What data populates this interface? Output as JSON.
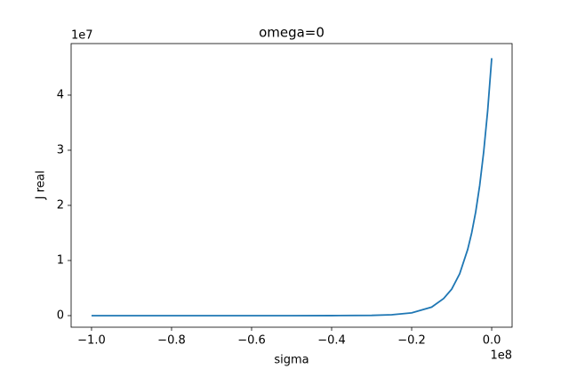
{
  "chart_data": {
    "type": "line",
    "title": "omega=0",
    "x_label": "sigma",
    "y_label": "J real",
    "x_offset": "1e8",
    "y_offset": "1e7",
    "x": [
      -1.0,
      -0.9,
      -0.8,
      -0.7,
      -0.6,
      -0.5,
      -0.4,
      -0.3,
      -0.25,
      -0.2,
      -0.15,
      -0.12,
      -0.1,
      -0.08,
      -0.06,
      -0.05,
      -0.04,
      -0.03,
      -0.02,
      -0.01,
      0.0
    ],
    "series": [
      {
        "name": "J real",
        "color": "#1f77b4",
        "values": [
          0,
          0,
          0,
          0,
          0,
          0,
          0.0005,
          0.005,
          0.016,
          0.05,
          0.155,
          0.31,
          0.48,
          0.76,
          1.2,
          1.5,
          1.88,
          2.36,
          2.97,
          3.72,
          4.67
        ]
      }
    ],
    "xlim": [
      -1.051,
      0.051
    ],
    "ylim": [
      -0.21,
      4.935
    ],
    "xticks": [
      {
        "value": -1.0,
        "label": "−1.0"
      },
      {
        "value": -0.8,
        "label": "−0.8"
      },
      {
        "value": -0.6,
        "label": "−0.6"
      },
      {
        "value": -0.4,
        "label": "−0.4"
      },
      {
        "value": -0.2,
        "label": "−0.2"
      },
      {
        "value": 0.0,
        "label": "0.0"
      }
    ],
    "yticks": [
      0,
      1,
      2,
      3,
      4
    ],
    "grid": false
  }
}
